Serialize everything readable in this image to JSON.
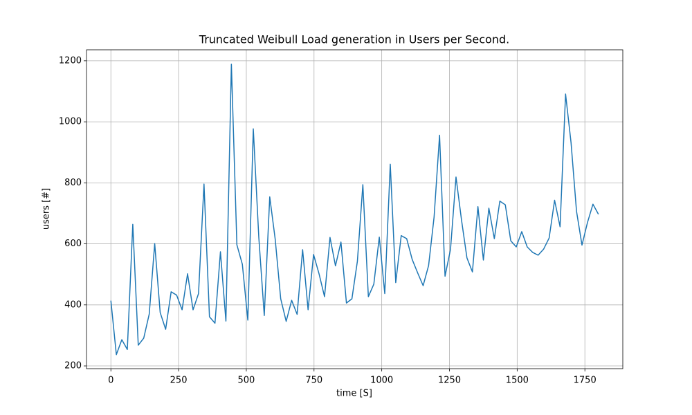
{
  "chart_data": {
    "type": "line",
    "title": "Truncated Weibull Load generation in Users per Second.",
    "x_label": "time [S]",
    "y_label": "users [#]",
    "x": [
      0,
      20.2,
      40.4,
      60.7,
      80.9,
      101.1,
      121.3,
      141.6,
      161.8,
      182.0,
      202.2,
      222.5,
      242.7,
      262.9,
      283.1,
      303.4,
      323.6,
      343.8,
      364.0,
      384.3,
      404.5,
      424.7,
      444.9,
      465.2,
      485.4,
      505.6,
      525.8,
      546.1,
      566.3,
      586.5,
      606.7,
      627.0,
      647.2,
      667.4,
      687.6,
      707.9,
      728.1,
      748.3,
      768.5,
      788.8,
      809.0,
      829.2,
      849.4,
      869.7,
      889.9,
      910.1,
      930.3,
      950.6,
      970.8,
      991.0,
      1011.2,
      1031.5,
      1051.7,
      1071.9,
      1092.1,
      1112.4,
      1132.6,
      1152.8,
      1173.0,
      1193.3,
      1213.5,
      1233.7,
      1253.9,
      1274.2,
      1294.4,
      1314.6,
      1334.8,
      1355.1,
      1375.3,
      1395.5,
      1415.7,
      1436.0,
      1456.2,
      1476.4,
      1496.6,
      1516.9,
      1537.1,
      1557.3,
      1577.5,
      1597.8,
      1618.0,
      1638.2,
      1658.4,
      1678.7,
      1698.9,
      1719.1,
      1739.3,
      1759.6,
      1779.8,
      1800
    ],
    "series": [
      {
        "color": "#1f77b4",
        "values": [
          414,
          237,
          286,
          254,
          664,
          268,
          291,
          370,
          601,
          375,
          320,
          443,
          432,
          384,
          502,
          384,
          437,
          796,
          361,
          340,
          574,
          347,
          1189,
          597,
          533,
          350,
          977,
          622,
          365,
          754,
          615,
          420,
          346,
          415,
          369,
          581,
          384,
          565,
          502,
          427,
          621,
          528,
          606,
          406,
          420,
          543,
          794,
          427,
          468,
          622,
          437,
          861,
          473,
          627,
          617,
          549,
          505,
          463,
          529,
          688,
          956,
          494,
          582,
          819,
          679,
          554,
          508,
          722,
          547,
          717,
          617,
          740,
          728,
          610,
          590,
          640,
          590,
          572,
          563,
          583,
          619,
          743,
          656,
          1091,
          932,
          707,
          596,
          670,
          730,
          697
        ]
      }
    ],
    "xlim": [
      -90,
      1890
    ],
    "ylim": [
      191,
      1236
    ],
    "xticks": [
      0,
      250,
      500,
      750,
      1000,
      1250,
      1500,
      1750
    ],
    "yticks": [
      200,
      400,
      600,
      800,
      1000,
      1200
    ],
    "grid": true
  }
}
